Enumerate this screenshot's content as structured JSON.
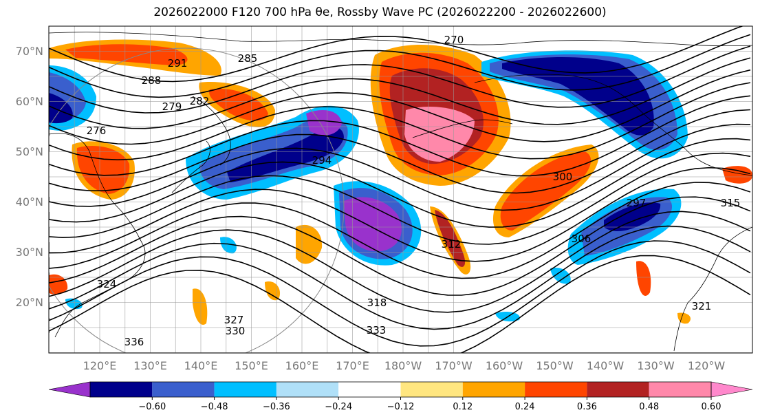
{
  "title": "2026022000 F120 700 hPa θe, Rossby Wave PC (2026022200 - 2026022600)",
  "map": {
    "lon_ticks": [
      "120°E",
      "130°E",
      "140°E",
      "150°E",
      "160°E",
      "170°E",
      "180°W",
      "170°W",
      "160°W",
      "150°W",
      "140°W",
      "130°W",
      "120°W"
    ],
    "lat_ticks": [
      "70°N",
      "60°N",
      "50°N",
      "40°N",
      "30°N",
      "20°N"
    ],
    "contour_labels": [
      "270",
      "276",
      "279",
      "282",
      "285",
      "288",
      "291",
      "294",
      "297",
      "300",
      "306",
      "312",
      "315",
      "318",
      "321",
      "324",
      "327",
      "330",
      "333",
      "336"
    ],
    "shaded_field": "Rossby Wave PC",
    "contour_field": "700 hPa θe",
    "grid": true
  },
  "colorbar": {
    "ticks": [
      "−0.60",
      "−0.48",
      "−0.36",
      "−0.24",
      "−0.12",
      "0.12",
      "0.24",
      "0.36",
      "0.48",
      "0.60"
    ],
    "colors": [
      "#9932cc",
      "#00008b",
      "#3a5fcd",
      "#00bfff",
      "#b0e0f8",
      "#ffffff",
      "#ffe680",
      "#ffa500",
      "#ff4500",
      "#b22222",
      "#ff88aa",
      "#ff88cc"
    ],
    "extend": "both"
  }
}
